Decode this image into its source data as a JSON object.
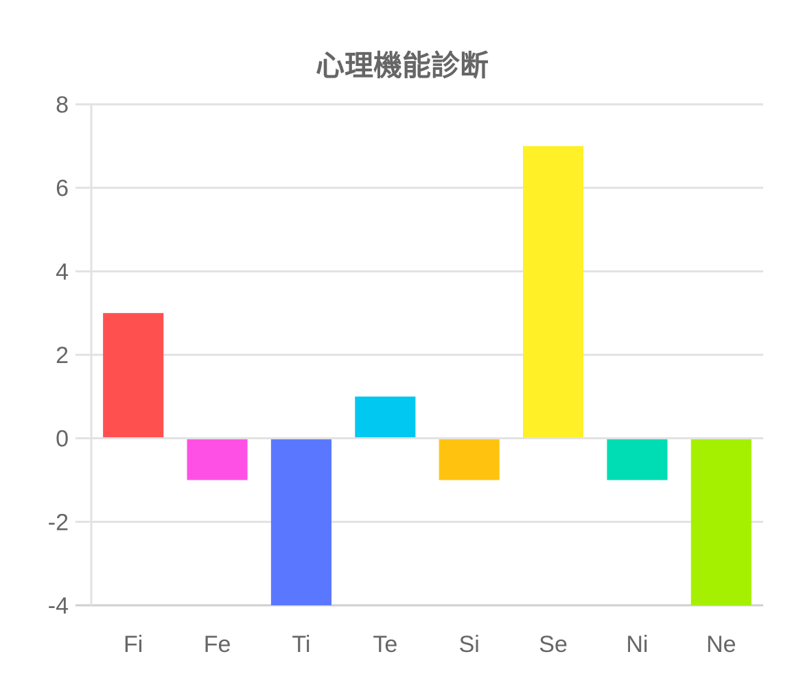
{
  "chart_data": {
    "type": "bar",
    "title": "心理機能診断",
    "xlabel": "",
    "ylabel": "",
    "categories": [
      "Fi",
      "Fe",
      "Ti",
      "Te",
      "Si",
      "Se",
      "Ni",
      "Ne"
    ],
    "values": [
      3,
      -1,
      -4,
      1,
      -1,
      7,
      -1,
      -4
    ],
    "colors": [
      "#ff5050",
      "#ff50e6",
      "#5a78ff",
      "#00c8f0",
      "#ffc30f",
      "#fff028",
      "#00dcb4",
      "#a5f000"
    ],
    "ylim": [
      -4,
      8
    ],
    "yticks": [
      "8",
      "6",
      "4",
      "2",
      "0",
      "-2",
      "-4"
    ],
    "grid": true,
    "legend": "none"
  }
}
